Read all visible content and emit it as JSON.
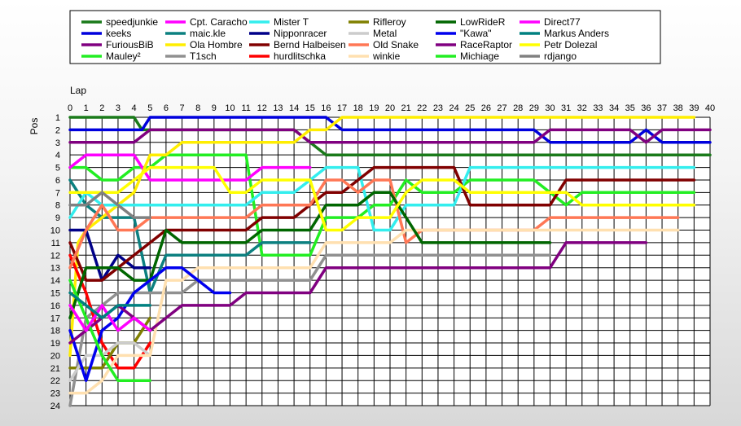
{
  "chart_data": {
    "type": "line",
    "title": "",
    "xlabel": "Lap",
    "ylabel": "Pos",
    "xlim": [
      0,
      40
    ],
    "ylim": [
      1,
      24
    ],
    "y_inverted": true,
    "grid": true,
    "legend_position": "top",
    "x_ticks": [
      0,
      1,
      2,
      3,
      4,
      5,
      6,
      7,
      8,
      9,
      10,
      11,
      12,
      13,
      14,
      15,
      16,
      17,
      18,
      19,
      20,
      21,
      22,
      23,
      24,
      25,
      26,
      27,
      28,
      29,
      30,
      31,
      32,
      33,
      34,
      35,
      36,
      37,
      38,
      39,
      40
    ],
    "y_ticks": [
      1,
      2,
      3,
      4,
      5,
      6,
      7,
      8,
      9,
      10,
      11,
      12,
      13,
      14,
      15,
      16,
      17,
      18,
      19,
      20,
      21,
      22,
      23,
      24
    ],
    "series": [
      {
        "name": "speedjunkie",
        "color": "#1a7a1a",
        "x": [
          0,
          1,
          2,
          3,
          4,
          4.5,
          5,
          6,
          7,
          8,
          9,
          10,
          11,
          12,
          13,
          14,
          15,
          16,
          17,
          18,
          19,
          20,
          21,
          22,
          23,
          24,
          25,
          26,
          27,
          28,
          29,
          30,
          31,
          32,
          33,
          34,
          35,
          36,
          37,
          38,
          39,
          40
        ],
        "y": [
          1,
          1,
          1,
          1,
          1,
          2,
          2,
          2,
          2,
          2,
          2,
          2,
          2,
          2,
          2,
          2,
          3,
          4,
          4,
          4,
          4,
          4,
          4,
          4,
          4,
          4,
          4,
          4,
          4,
          4,
          4,
          4,
          4,
          4,
          4,
          4,
          4,
          4,
          4,
          4,
          4,
          4
        ]
      },
      {
        "name": "keeks",
        "color": "#0000dd",
        "x": [
          0,
          1,
          2,
          3,
          4,
          4.5,
          5,
          6,
          7,
          8,
          9,
          10,
          11,
          12,
          13,
          14,
          15,
          16,
          17,
          18,
          19,
          20,
          21,
          22,
          23,
          24,
          25,
          26,
          27,
          28,
          29,
          30,
          31,
          32,
          33,
          34,
          35,
          36,
          37,
          38,
          39,
          40
        ],
        "y": [
          2,
          2,
          2,
          2,
          2,
          2,
          1,
          1,
          1,
          1,
          1,
          1,
          1,
          1,
          1,
          1,
          1,
          1,
          2,
          2,
          2,
          2,
          2,
          2,
          2,
          2,
          2,
          2,
          2,
          2,
          2,
          3,
          3,
          3,
          3,
          3,
          3,
          2,
          3,
          3,
          3,
          3
        ]
      },
      {
        "name": "FuriousBiB",
        "color": "#800080",
        "x": [
          0,
          1,
          2,
          3,
          4,
          5,
          6,
          7,
          8,
          9,
          10,
          11,
          12,
          13,
          14,
          15,
          16,
          17,
          18,
          19,
          20,
          21,
          22,
          23,
          24,
          25,
          26,
          27,
          28,
          29,
          30,
          31,
          32,
          33,
          34,
          35,
          36,
          37,
          38,
          39,
          40
        ],
        "y": [
          3,
          3,
          3,
          3,
          3,
          2,
          2,
          2,
          2,
          2,
          2,
          2,
          2,
          2,
          2,
          3,
          3,
          3,
          3,
          3,
          3,
          3,
          3,
          3,
          3,
          3,
          3,
          3,
          3,
          3,
          2,
          2,
          2,
          2,
          2,
          2,
          3,
          2,
          2,
          2,
          2
        ]
      },
      {
        "name": "Mauley²",
        "color": "#22ee22",
        "x": [
          0,
          1,
          2,
          3,
          4,
          5,
          6,
          7,
          8,
          9,
          10,
          11,
          12,
          13,
          14,
          15,
          16,
          17,
          18,
          19,
          20,
          21,
          22,
          23,
          24,
          25,
          26,
          27,
          28,
          29,
          30,
          31,
          32,
          33,
          34,
          35,
          36,
          37,
          38,
          39
        ],
        "y": [
          5,
          5,
          6,
          6,
          5,
          5,
          4,
          4,
          4,
          4,
          4,
          4,
          12,
          12,
          12,
          12,
          9,
          9,
          9,
          8,
          8,
          6,
          7,
          7,
          7,
          6,
          6,
          6,
          6,
          6,
          7,
          8,
          7,
          7,
          7,
          7,
          7,
          7,
          7,
          7
        ]
      },
      {
        "name": "Cpt. Caracho",
        "color": "#ff00ff",
        "x": [
          0,
          1,
          2,
          3,
          4,
          5,
          6,
          7,
          8,
          9,
          10,
          11,
          12,
          13,
          14,
          15
        ],
        "y": [
          5,
          4,
          4,
          4,
          4,
          6,
          6,
          6,
          6,
          6,
          6,
          6,
          5,
          5,
          5,
          5
        ]
      },
      {
        "name": "maic.kle",
        "color": "#0c8080",
        "x": [
          0,
          1,
          2,
          3,
          4,
          5,
          6,
          7,
          8,
          9,
          10,
          11,
          12,
          13,
          14,
          15
        ],
        "y": [
          6,
          8,
          9,
          9,
          9,
          15,
          12,
          12,
          12,
          12,
          12,
          12,
          11,
          11,
          11,
          11
        ]
      },
      {
        "name": "Ola Hombre",
        "color": "#ffee00",
        "x": [
          0,
          0.5,
          1,
          2,
          3,
          4,
          5,
          6,
          7,
          8,
          9,
          10,
          11,
          12,
          13,
          14,
          15,
          16,
          17,
          18,
          19,
          20,
          21,
          22,
          23,
          24,
          25,
          26,
          27,
          28,
          29,
          30,
          31,
          32,
          33,
          34,
          35,
          36,
          37,
          38,
          39
        ],
        "y": [
          20,
          11,
          10,
          9,
          8,
          7,
          4,
          4,
          3,
          3,
          3,
          3,
          3,
          3,
          3,
          3,
          2,
          2,
          1,
          1,
          1,
          1,
          1,
          1,
          1,
          1,
          1,
          1,
          1,
          1,
          1,
          1,
          1,
          1,
          1,
          1,
          1,
          1,
          1,
          1,
          1
        ]
      },
      {
        "name": "T1sch",
        "color": "#909090",
        "x": [
          0,
          1,
          2,
          3,
          4,
          5,
          6,
          7,
          8,
          9,
          10,
          11,
          12,
          13,
          14,
          15,
          16,
          17,
          18,
          19,
          20,
          21,
          22,
          23,
          24,
          25,
          26,
          27,
          28,
          29,
          30
        ],
        "y": [
          24,
          17,
          16,
          15,
          15,
          15,
          15,
          15,
          14,
          14,
          14,
          14,
          14,
          14,
          14,
          14,
          12,
          12,
          12,
          12,
          12,
          12,
          12,
          12,
          12,
          12,
          12,
          12,
          12,
          12,
          12
        ]
      },
      {
        "name": "Mister T",
        "color": "#33eeee",
        "x": [
          0,
          1,
          2,
          3,
          4,
          5,
          6,
          7,
          8,
          9,
          10,
          11,
          12,
          13,
          14,
          15,
          16,
          17,
          18,
          19,
          20,
          21,
          22,
          23,
          24,
          25,
          26,
          27,
          28,
          29,
          30,
          31,
          32,
          33,
          34,
          35,
          36,
          37,
          38,
          39
        ],
        "y": [
          9,
          7,
          8,
          8,
          8,
          8,
          8,
          8,
          8,
          8,
          8,
          8,
          7,
          7,
          7,
          6,
          5,
          5,
          5,
          10,
          10,
          8,
          8,
          8,
          8,
          5,
          5,
          5,
          5,
          5,
          5,
          5,
          5,
          5,
          5,
          5,
          5,
          5,
          5,
          5
        ]
      },
      {
        "name": "Nipponracer",
        "color": "#000088",
        "x": [
          0,
          1,
          2,
          3,
          4,
          5
        ],
        "y": [
          10,
          10,
          14,
          12,
          13,
          13
        ]
      },
      {
        "name": "Bernd Halbeisen",
        "color": "#800000",
        "x": [
          0,
          1,
          2,
          3,
          4,
          5,
          6,
          7,
          8,
          9,
          10,
          11,
          12,
          13,
          14,
          15,
          16,
          17,
          18,
          19,
          20,
          21,
          22,
          23,
          24,
          25,
          26,
          27,
          28,
          29,
          30,
          31,
          32,
          33,
          34,
          35,
          36,
          37,
          38,
          39
        ],
        "y": [
          11,
          14,
          14,
          13,
          12,
          11,
          10,
          10,
          10,
          10,
          10,
          10,
          9,
          9,
          9,
          8,
          7,
          7,
          6,
          5,
          5,
          5,
          5,
          5,
          5,
          8,
          8,
          8,
          8,
          8,
          8,
          6,
          6,
          6,
          6,
          6,
          6,
          6,
          6,
          6
        ]
      },
      {
        "name": "hurdlitschka",
        "color": "#ff0000",
        "x": [
          0,
          1,
          2,
          3,
          4,
          5
        ],
        "y": [
          12,
          15,
          19,
          21,
          21,
          19
        ]
      },
      {
        "name": "Rifleroy",
        "color": "#808000",
        "x": [
          0,
          1,
          2,
          3,
          4,
          5
        ],
        "y": [
          21,
          21,
          21,
          19,
          19,
          17
        ]
      },
      {
        "name": "Metal",
        "color": "#cccccc",
        "x": [
          0,
          1,
          2,
          3,
          4,
          5
        ],
        "y": [
          22,
          20,
          20,
          19,
          19,
          20
        ]
      },
      {
        "name": "Old Snake",
        "color": "#ff7755",
        "x": [
          0,
          1,
          2,
          3,
          4,
          5,
          6,
          7,
          8,
          9,
          10,
          11,
          12,
          13,
          14,
          15,
          16,
          17,
          18,
          19,
          20,
          21,
          22,
          23,
          24,
          25,
          26,
          27,
          28,
          29,
          30,
          31,
          32,
          33,
          34,
          35,
          36,
          37,
          38
        ],
        "y": [
          13,
          10,
          8,
          10,
          10,
          9,
          9,
          9,
          9,
          9,
          9,
          9,
          8,
          8,
          8,
          8,
          6,
          6,
          7,
          6,
          6,
          11,
          10,
          10,
          10,
          10,
          10,
          10,
          10,
          10,
          9,
          9,
          9,
          9,
          9,
          9,
          9,
          9,
          9
        ]
      },
      {
        "name": "winkie",
        "color": "#ffe0b0",
        "x": [
          0,
          1,
          2,
          3,
          4,
          5,
          6,
          7,
          8,
          9,
          10,
          11,
          12,
          13,
          14,
          15,
          16,
          17,
          18,
          19,
          20,
          21,
          22,
          23,
          24,
          25,
          26,
          27,
          28,
          29,
          30,
          31,
          32,
          33,
          34,
          35,
          36,
          37,
          38
        ],
        "y": [
          23,
          23,
          22,
          20,
          20,
          20,
          14,
          14,
          13,
          13,
          13,
          13,
          13,
          13,
          13,
          13,
          11,
          11,
          11,
          11,
          11,
          10,
          10,
          10,
          10,
          10,
          10,
          10,
          10,
          10,
          10,
          10,
          10,
          10,
          10,
          10,
          10,
          10,
          10
        ]
      },
      {
        "name": "LowRideR",
        "color": "#006600",
        "x": [
          0,
          1,
          2,
          3,
          4,
          5,
          6,
          7,
          8,
          9,
          10,
          11,
          12,
          13,
          14,
          15,
          16,
          17,
          18,
          19,
          20,
          21,
          22,
          23,
          24,
          25,
          26,
          27,
          28,
          29,
          30
        ],
        "y": [
          17,
          13,
          13,
          13,
          14,
          14,
          10,
          11,
          11,
          11,
          11,
          11,
          10,
          10,
          10,
          10,
          8,
          8,
          8,
          7,
          7,
          9,
          11,
          11,
          11,
          11,
          11,
          11,
          11,
          11,
          11
        ]
      },
      {
        "name": "\"Kawa\"",
        "color": "#0000ee",
        "x": [
          0,
          1,
          2,
          3,
          4,
          5,
          6,
          7,
          8,
          9,
          10
        ],
        "y": [
          18,
          22,
          18,
          17,
          15,
          14,
          13,
          13,
          14,
          15,
          15
        ]
      },
      {
        "name": "RaceRaptor",
        "color": "#800080",
        "x": [
          0,
          1,
          2,
          3,
          4,
          5,
          6,
          7,
          8,
          9,
          10,
          11,
          12,
          13,
          14,
          15,
          16,
          17,
          18,
          19,
          20,
          21,
          22,
          23,
          24,
          25,
          26,
          27,
          28,
          29,
          30,
          31,
          32,
          33,
          34,
          35,
          36
        ],
        "y": [
          19,
          18,
          17,
          16,
          17,
          18,
          17,
          16,
          16,
          16,
          16,
          15,
          15,
          15,
          15,
          15,
          13,
          13,
          13,
          13,
          13,
          13,
          13,
          13,
          13,
          13,
          13,
          13,
          13,
          13,
          13,
          11,
          11,
          11,
          11,
          11,
          11
        ]
      },
      {
        "name": "Michiage",
        "color": "#22ee22",
        "x": [
          0,
          1,
          2,
          3,
          4,
          5
        ],
        "y": [
          14,
          17,
          20,
          22,
          22,
          22
        ]
      },
      {
        "name": "Direct77",
        "color": "#ff00ff",
        "x": [
          0,
          1,
          2,
          3,
          4,
          5
        ],
        "y": [
          16,
          18,
          16,
          18,
          17,
          18
        ]
      },
      {
        "name": "Markus Anders",
        "color": "#008080",
        "x": [
          0,
          1,
          2,
          3,
          4,
          5
        ],
        "y": [
          15,
          16,
          17,
          16,
          16,
          16
        ]
      },
      {
        "name": "Petr Dolezal",
        "color": "#ffff00",
        "x": [
          0,
          1,
          2,
          3,
          4,
          5,
          6,
          7,
          8,
          9,
          10,
          11,
          12,
          13,
          14,
          15,
          16,
          17,
          18,
          19,
          20,
          21,
          22,
          23,
          24,
          25,
          26,
          27,
          28,
          29,
          30,
          31,
          32,
          33,
          34,
          35,
          36,
          37,
          38,
          39
        ],
        "y": [
          7,
          7,
          7,
          7,
          6,
          5,
          5,
          5,
          5,
          5,
          7,
          7,
          6,
          6,
          6,
          6,
          10,
          10,
          9,
          9,
          9,
          7,
          6,
          6,
          6,
          7,
          7,
          7,
          7,
          7,
          7,
          7,
          8,
          8,
          8,
          8,
          8,
          8,
          8,
          8
        ]
      },
      {
        "name": "rdjango",
        "color": "#808080",
        "x": [
          0,
          1,
          2,
          3,
          4,
          5
        ],
        "y": [
          8,
          8,
          7,
          8,
          9,
          9
        ]
      }
    ]
  }
}
